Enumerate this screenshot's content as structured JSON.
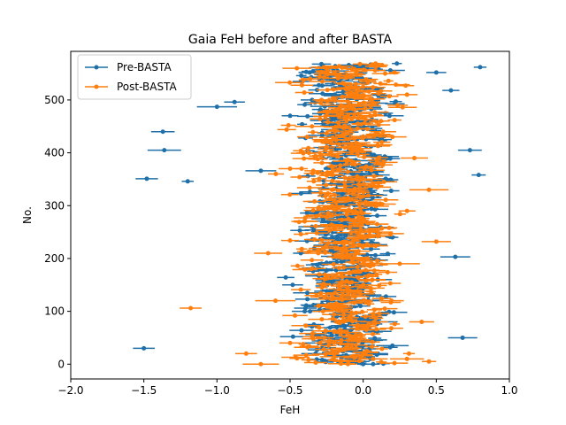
{
  "chart_data": {
    "type": "scatter",
    "title": "Gaia FeH before and after BASTA",
    "xlabel": "FeH",
    "ylabel": "No.",
    "xlim": [
      -2.0,
      1.0
    ],
    "ylim": [
      -28,
      592
    ],
    "x_ticks": [
      -2.0,
      -1.5,
      -1.0,
      -0.5,
      0.0,
      0.5,
      1.0
    ],
    "x_tick_labels": [
      "−2.0",
      "−1.5",
      "−1.0",
      "−0.5",
      "0.0",
      "0.5",
      "1.0"
    ],
    "y_ticks": [
      0,
      100,
      200,
      300,
      400,
      500
    ],
    "y_tick_labels": [
      "0",
      "100",
      "200",
      "300",
      "400",
      "500"
    ],
    "grid": false,
    "legend_position": "top-left",
    "n_points": 570,
    "series": [
      {
        "name": "Pre-BASTA",
        "color": "#1f6fa8",
        "values": [
          [
            0.0,
            0
          ],
          [
            -0.1,
            5
          ],
          [
            0.05,
            10
          ],
          [
            -0.2,
            15
          ],
          [
            0.1,
            20
          ],
          [
            -0.05,
            25
          ],
          [
            -1.5,
            30
          ],
          [
            0.2,
            35
          ],
          [
            -0.3,
            40
          ],
          [
            0.0,
            45
          ],
          [
            0.68,
            50
          ],
          [
            -0.15,
            60
          ],
          [
            0.1,
            80
          ],
          [
            -0.4,
            100
          ],
          [
            0.0,
            120
          ],
          [
            -0.2,
            140
          ],
          [
            0.1,
            160
          ],
          [
            -0.3,
            180
          ],
          [
            0.63,
            203
          ],
          [
            -0.1,
            220
          ],
          [
            0.2,
            240
          ],
          [
            -0.35,
            260
          ],
          [
            0.0,
            280
          ],
          [
            -0.2,
            300
          ],
          [
            0.1,
            320
          ],
          [
            -1.48,
            351
          ],
          [
            -1.2,
            346
          ],
          [
            -0.7,
            366
          ],
          [
            0.79,
            358
          ],
          [
            -1.36,
            405
          ],
          [
            -1.37,
            440
          ],
          [
            0.73,
            405
          ],
          [
            -1.0,
            487
          ],
          [
            -0.88,
            496
          ],
          [
            -0.5,
            470
          ],
          [
            0.0,
            450
          ],
          [
            -0.2,
            430
          ],
          [
            0.1,
            510
          ],
          [
            0.6,
            518
          ],
          [
            -0.3,
            540
          ],
          [
            0.5,
            552
          ],
          [
            0.8,
            562
          ],
          [
            0.0,
            565
          ]
        ]
      },
      {
        "name": "Post-BASTA",
        "color": "#ff7f0e",
        "values": [
          [
            -0.7,
            0
          ],
          [
            -0.8,
            20
          ],
          [
            -0.5,
            40
          ],
          [
            0.3,
            10
          ],
          [
            -0.1,
            30
          ],
          [
            0.45,
            5
          ],
          [
            -1.18,
            106
          ],
          [
            0.4,
            80
          ],
          [
            -0.6,
            120
          ],
          [
            0.0,
            150
          ],
          [
            -0.3,
            170
          ],
          [
            0.25,
            190
          ],
          [
            -0.65,
            210
          ],
          [
            0.5,
            232
          ],
          [
            0.1,
            250
          ],
          [
            -0.4,
            270
          ],
          [
            0.3,
            290
          ],
          [
            -0.2,
            310
          ],
          [
            0.45,
            330
          ],
          [
            0.0,
            350
          ],
          [
            -0.5,
            370
          ],
          [
            0.35,
            390
          ],
          [
            -0.1,
            410
          ],
          [
            0.2,
            430
          ],
          [
            -0.35,
            450
          ],
          [
            0.05,
            470
          ],
          [
            -0.15,
            490
          ],
          [
            0.3,
            510
          ],
          [
            -0.05,
            530
          ],
          [
            0.15,
            550
          ],
          [
            -0.25,
            560
          ]
        ]
      }
    ]
  }
}
